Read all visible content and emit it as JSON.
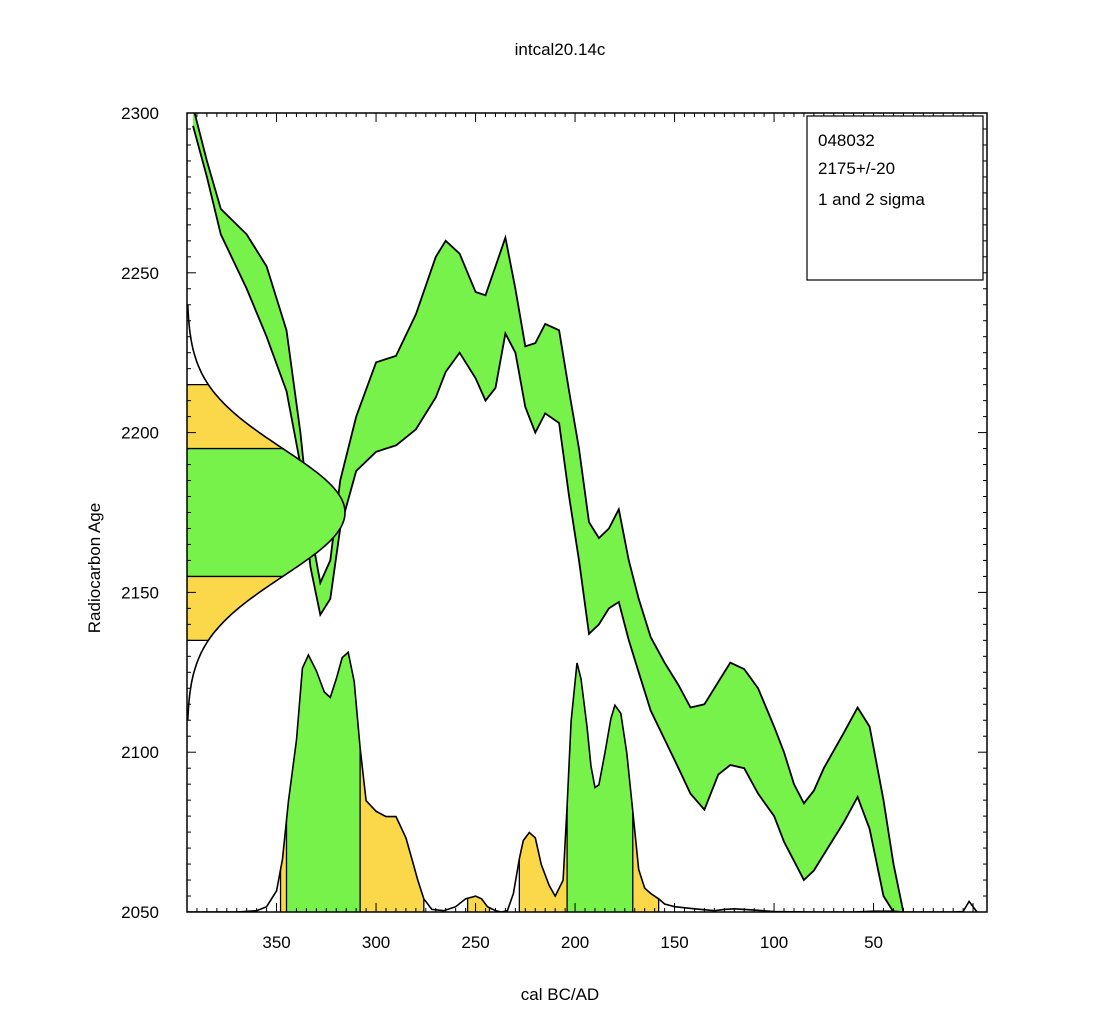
{
  "chart_data": {
    "type": "area",
    "title": "intcal20.14c",
    "xlabel": "cal BC/AD",
    "ylabel": "Radiocarbon Age",
    "xlim": [
      395,
      -7
    ],
    "ylim": [
      2050,
      2300
    ],
    "x_ticks": [
      350,
      300,
      250,
      200,
      150,
      100,
      50
    ],
    "y_ticks": [
      2050,
      2100,
      2150,
      2200,
      2250,
      2300
    ],
    "legend_position": "top-right",
    "legend_lines": [
      "048032",
      "2175+/-20",
      "1 and 2 sigma"
    ],
    "colors": {
      "one_sigma": "#77f24a",
      "two_sigma": "#fad849",
      "outline": "#000000"
    },
    "measurement": {
      "age": 2175,
      "error": 20
    },
    "sigma_ranges_age": {
      "one_sigma": [
        2155,
        2195
      ],
      "two_sigma": [
        2135,
        2215
      ]
    },
    "calibration_curve": {
      "x": [
        392,
        385,
        378,
        365,
        355,
        345,
        338,
        333,
        328,
        323,
        318,
        310,
        300,
        290,
        280,
        270,
        265,
        258,
        250,
        245,
        240,
        235,
        230,
        225,
        220,
        215,
        208,
        203,
        198,
        193,
        188,
        183,
        178,
        173,
        168,
        162,
        155,
        148,
        142,
        135,
        128,
        122,
        115,
        108,
        100,
        95,
        90,
        85,
        80,
        75,
        65,
        58,
        52,
        45,
        40,
        35
      ],
      "upper": [
        2302,
        2285,
        2270,
        2262,
        2252,
        2232,
        2200,
        2170,
        2153,
        2160,
        2185,
        2205,
        2222,
        2224,
        2237,
        2255,
        2260,
        2256,
        2244,
        2243,
        2252,
        2261,
        2245,
        2227,
        2228,
        2234,
        2232,
        2213,
        2195,
        2172,
        2167,
        2170,
        2176,
        2160,
        2148,
        2136,
        2128,
        2121,
        2114,
        2115,
        2122,
        2128,
        2126,
        2120,
        2108,
        2100,
        2090,
        2084,
        2088,
        2095,
        2106,
        2114,
        2108,
        2085,
        2065,
        2050
      ],
      "lower": [
        2296,
        2280,
        2262,
        2245,
        2230,
        2213,
        2190,
        2158,
        2143,
        2148,
        2170,
        2188,
        2194,
        2196,
        2201,
        2211,
        2219,
        2225,
        2217,
        2210,
        2214,
        2231,
        2225,
        2208,
        2200,
        2206,
        2203,
        2180,
        2160,
        2137,
        2140,
        2145,
        2147,
        2135,
        2125,
        2113,
        2104,
        2095,
        2087,
        2082,
        2093,
        2096,
        2095,
        2087,
        2080,
        2072,
        2066,
        2060,
        2063,
        2068,
        2078,
        2086,
        2076,
        2055,
        2050,
        2050
      ]
    },
    "calibrated_distribution": {
      "x": [
        395,
        390,
        380,
        370,
        360,
        355,
        350,
        347,
        344,
        340,
        337,
        334,
        330,
        326,
        323,
        320,
        317,
        314,
        311,
        308,
        305,
        300,
        295,
        290,
        285,
        282,
        279,
        276,
        272,
        266,
        260,
        255,
        250,
        247,
        244,
        240,
        237,
        234,
        231,
        228,
        226,
        223,
        220,
        217,
        213,
        210,
        206,
        204,
        202,
        199,
        197,
        194,
        192,
        190,
        188,
        185,
        182,
        180,
        177,
        174,
        171,
        168,
        165,
        162,
        158,
        155,
        150,
        140,
        130,
        125,
        120,
        110,
        100,
        80,
        60,
        50,
        40,
        35,
        10,
        5,
        2,
        -2
      ],
      "height": [
        0,
        0,
        0,
        0,
        0.005,
        0.02,
        0.08,
        0.2,
        0.42,
        0.65,
        0.92,
        0.97,
        0.91,
        0.83,
        0.81,
        0.88,
        0.96,
        0.98,
        0.87,
        0.62,
        0.42,
        0.38,
        0.36,
        0.36,
        0.28,
        0.2,
        0.12,
        0.05,
        0.01,
        0.005,
        0.02,
        0.05,
        0.06,
        0.05,
        0.02,
        0.005,
        0,
        0.005,
        0.07,
        0.2,
        0.27,
        0.3,
        0.28,
        0.18,
        0.1,
        0.06,
        0.12,
        0.4,
        0.72,
        0.94,
        0.88,
        0.7,
        0.55,
        0.47,
        0.48,
        0.6,
        0.73,
        0.78,
        0.75,
        0.6,
        0.38,
        0.16,
        0.09,
        0.07,
        0.05,
        0.03,
        0.02,
        0.012,
        0.005,
        0.01,
        0.012,
        0.007,
        0.002,
        0,
        0,
        0.003,
        0.003,
        0,
        0,
        0.002,
        0.04,
        0
      ],
      "one_sigma_ranges": [
        [
          345,
          308
        ],
        [
          204,
          171
        ]
      ],
      "two_sigma_ranges": [
        [
          348,
          345
        ],
        [
          308,
          276
        ],
        [
          254,
          243
        ],
        [
          228,
          204
        ],
        [
          171,
          158
        ]
      ]
    }
  }
}
